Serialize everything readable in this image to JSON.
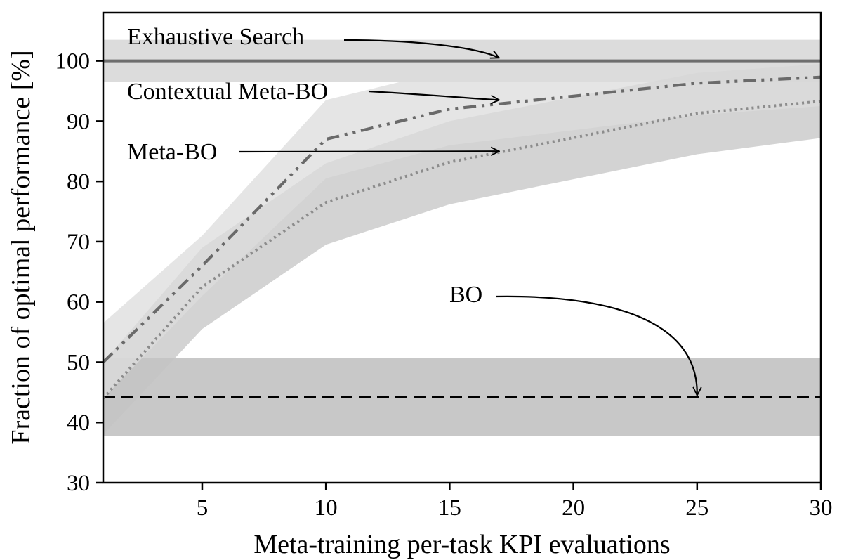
{
  "chart_data": {
    "type": "line",
    "title": "",
    "xlabel": "Meta-training per-task KPI evaluations",
    "ylabel": "Fraction of optimal performance [%]",
    "xlim": [
      1,
      30
    ],
    "ylim": [
      30,
      108
    ],
    "xticks": [
      5,
      10,
      15,
      20,
      25,
      30
    ],
    "yticks": [
      30,
      40,
      50,
      60,
      70,
      80,
      90,
      100
    ],
    "grid": false,
    "legend": "none",
    "series": [
      {
        "name": "Exhaustive Search",
        "style": "solid",
        "color": "#6e6e6e",
        "x": [
          1,
          30
        ],
        "values": [
          100,
          100
        ],
        "band_lower": [
          96.5,
          96.5
        ],
        "band_upper": [
          103.5,
          103.5
        ],
        "band_color": "#dcdcdc"
      },
      {
        "name": "BO",
        "style": "dashed",
        "color": "#000000",
        "x": [
          1,
          30
        ],
        "values": [
          44.2,
          44.2
        ],
        "band_lower": [
          37.7,
          37.7
        ],
        "band_upper": [
          50.7,
          50.7
        ],
        "band_color": "#c8c8c8"
      },
      {
        "name": "Meta-BO",
        "style": "dotted",
        "color": "#8c8c8c",
        "x": [
          1,
          5,
          10,
          15,
          25,
          30
        ],
        "values": [
          44,
          62.5,
          76.5,
          83.2,
          91.3,
          93.3
        ],
        "band_lower": [
          38,
          55.5,
          69.5,
          76.2,
          84.5,
          87.2
        ],
        "band_upper": [
          50,
          69,
          83,
          90,
          98,
          99.5
        ],
        "band_color": "#c4c4c4"
      },
      {
        "name": "Contextual Meta-BO",
        "style": "dashdotdot",
        "color": "#6a6a6a",
        "x": [
          1,
          5,
          10,
          15,
          25,
          30
        ],
        "values": [
          50,
          66,
          87,
          92,
          96.3,
          97.3
        ],
        "band_lower": [
          44,
          61,
          80.5,
          86,
          91,
          92.5
        ],
        "band_upper": [
          56.5,
          71,
          93.5,
          98.5,
          101.3,
          102.3
        ],
        "band_color": "#dcdcdc"
      }
    ],
    "annotations": [
      {
        "text": "Exhaustive Search",
        "target_x": 17,
        "target_y": 100.5
      },
      {
        "text": "Contextual Meta-BO",
        "target_x": 17,
        "target_y": 93.5
      },
      {
        "text": "Meta-BO",
        "target_x": 17,
        "target_y": 85
      },
      {
        "text": "BO",
        "target_x": 25,
        "target_y": 44.5
      }
    ]
  }
}
